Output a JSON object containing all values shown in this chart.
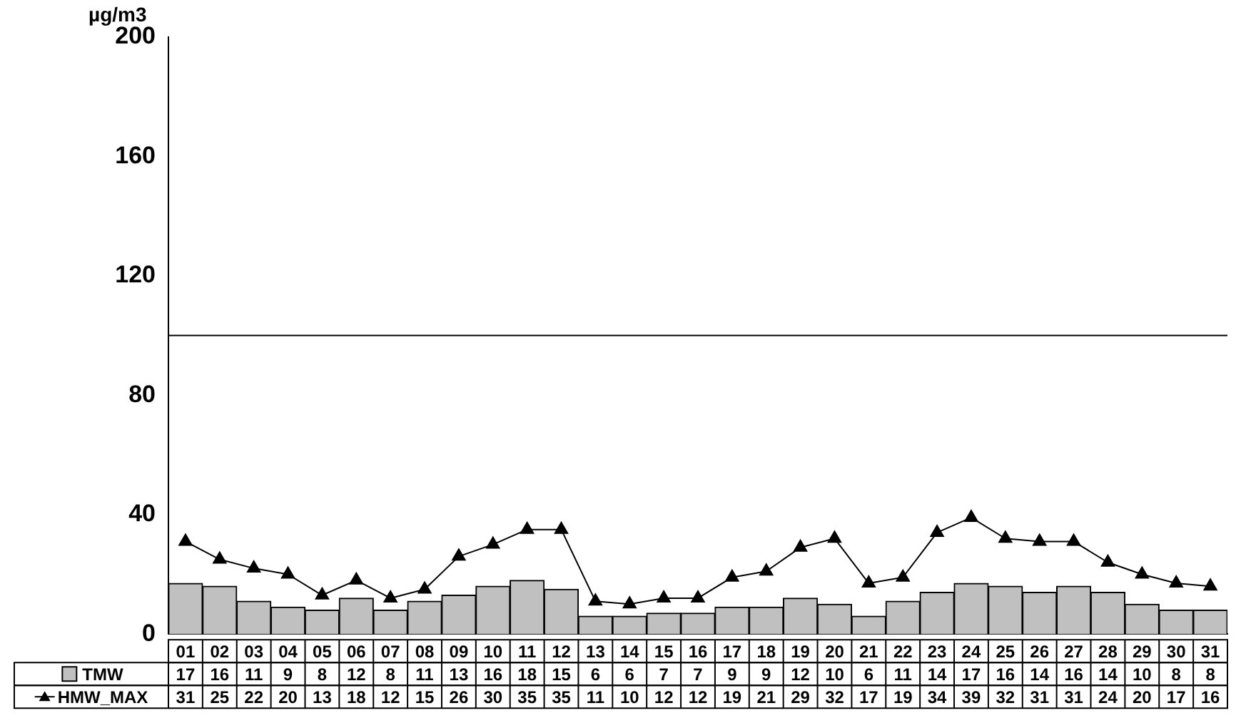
{
  "chart_data": {
    "type": "bar",
    "ylabel": "µg/m3",
    "categories": [
      "01",
      "02",
      "03",
      "04",
      "05",
      "06",
      "07",
      "08",
      "09",
      "10",
      "11",
      "12",
      "13",
      "14",
      "15",
      "16",
      "17",
      "18",
      "19",
      "20",
      "21",
      "22",
      "23",
      "24",
      "25",
      "26",
      "27",
      "28",
      "29",
      "30",
      "31"
    ],
    "series": [
      {
        "name": "TMW",
        "type": "bar",
        "color": "#c0c0c0",
        "values": [
          17,
          16,
          11,
          9,
          8,
          12,
          8,
          11,
          13,
          16,
          18,
          15,
          6,
          6,
          7,
          7,
          9,
          9,
          12,
          10,
          6,
          11,
          14,
          17,
          16,
          14,
          16,
          14,
          10,
          8,
          8
        ]
      },
      {
        "name": "HMW_MAX",
        "type": "line",
        "color": "#000000",
        "marker": "triangle",
        "values": [
          31,
          25,
          22,
          20,
          13,
          18,
          12,
          15,
          26,
          30,
          35,
          35,
          11,
          10,
          12,
          12,
          19,
          21,
          29,
          32,
          17,
          19,
          34,
          39,
          32,
          31,
          31,
          24,
          20,
          17,
          16
        ]
      }
    ],
    "ylim": [
      0,
      200
    ],
    "yticks": [
      0,
      40,
      80,
      120,
      160,
      200
    ],
    "ref_lines": [
      {
        "axis": "y",
        "value": 100,
        "color": "#000000"
      }
    ],
    "grid": false,
    "legend": "bottom left",
    "data_labels": true
  }
}
